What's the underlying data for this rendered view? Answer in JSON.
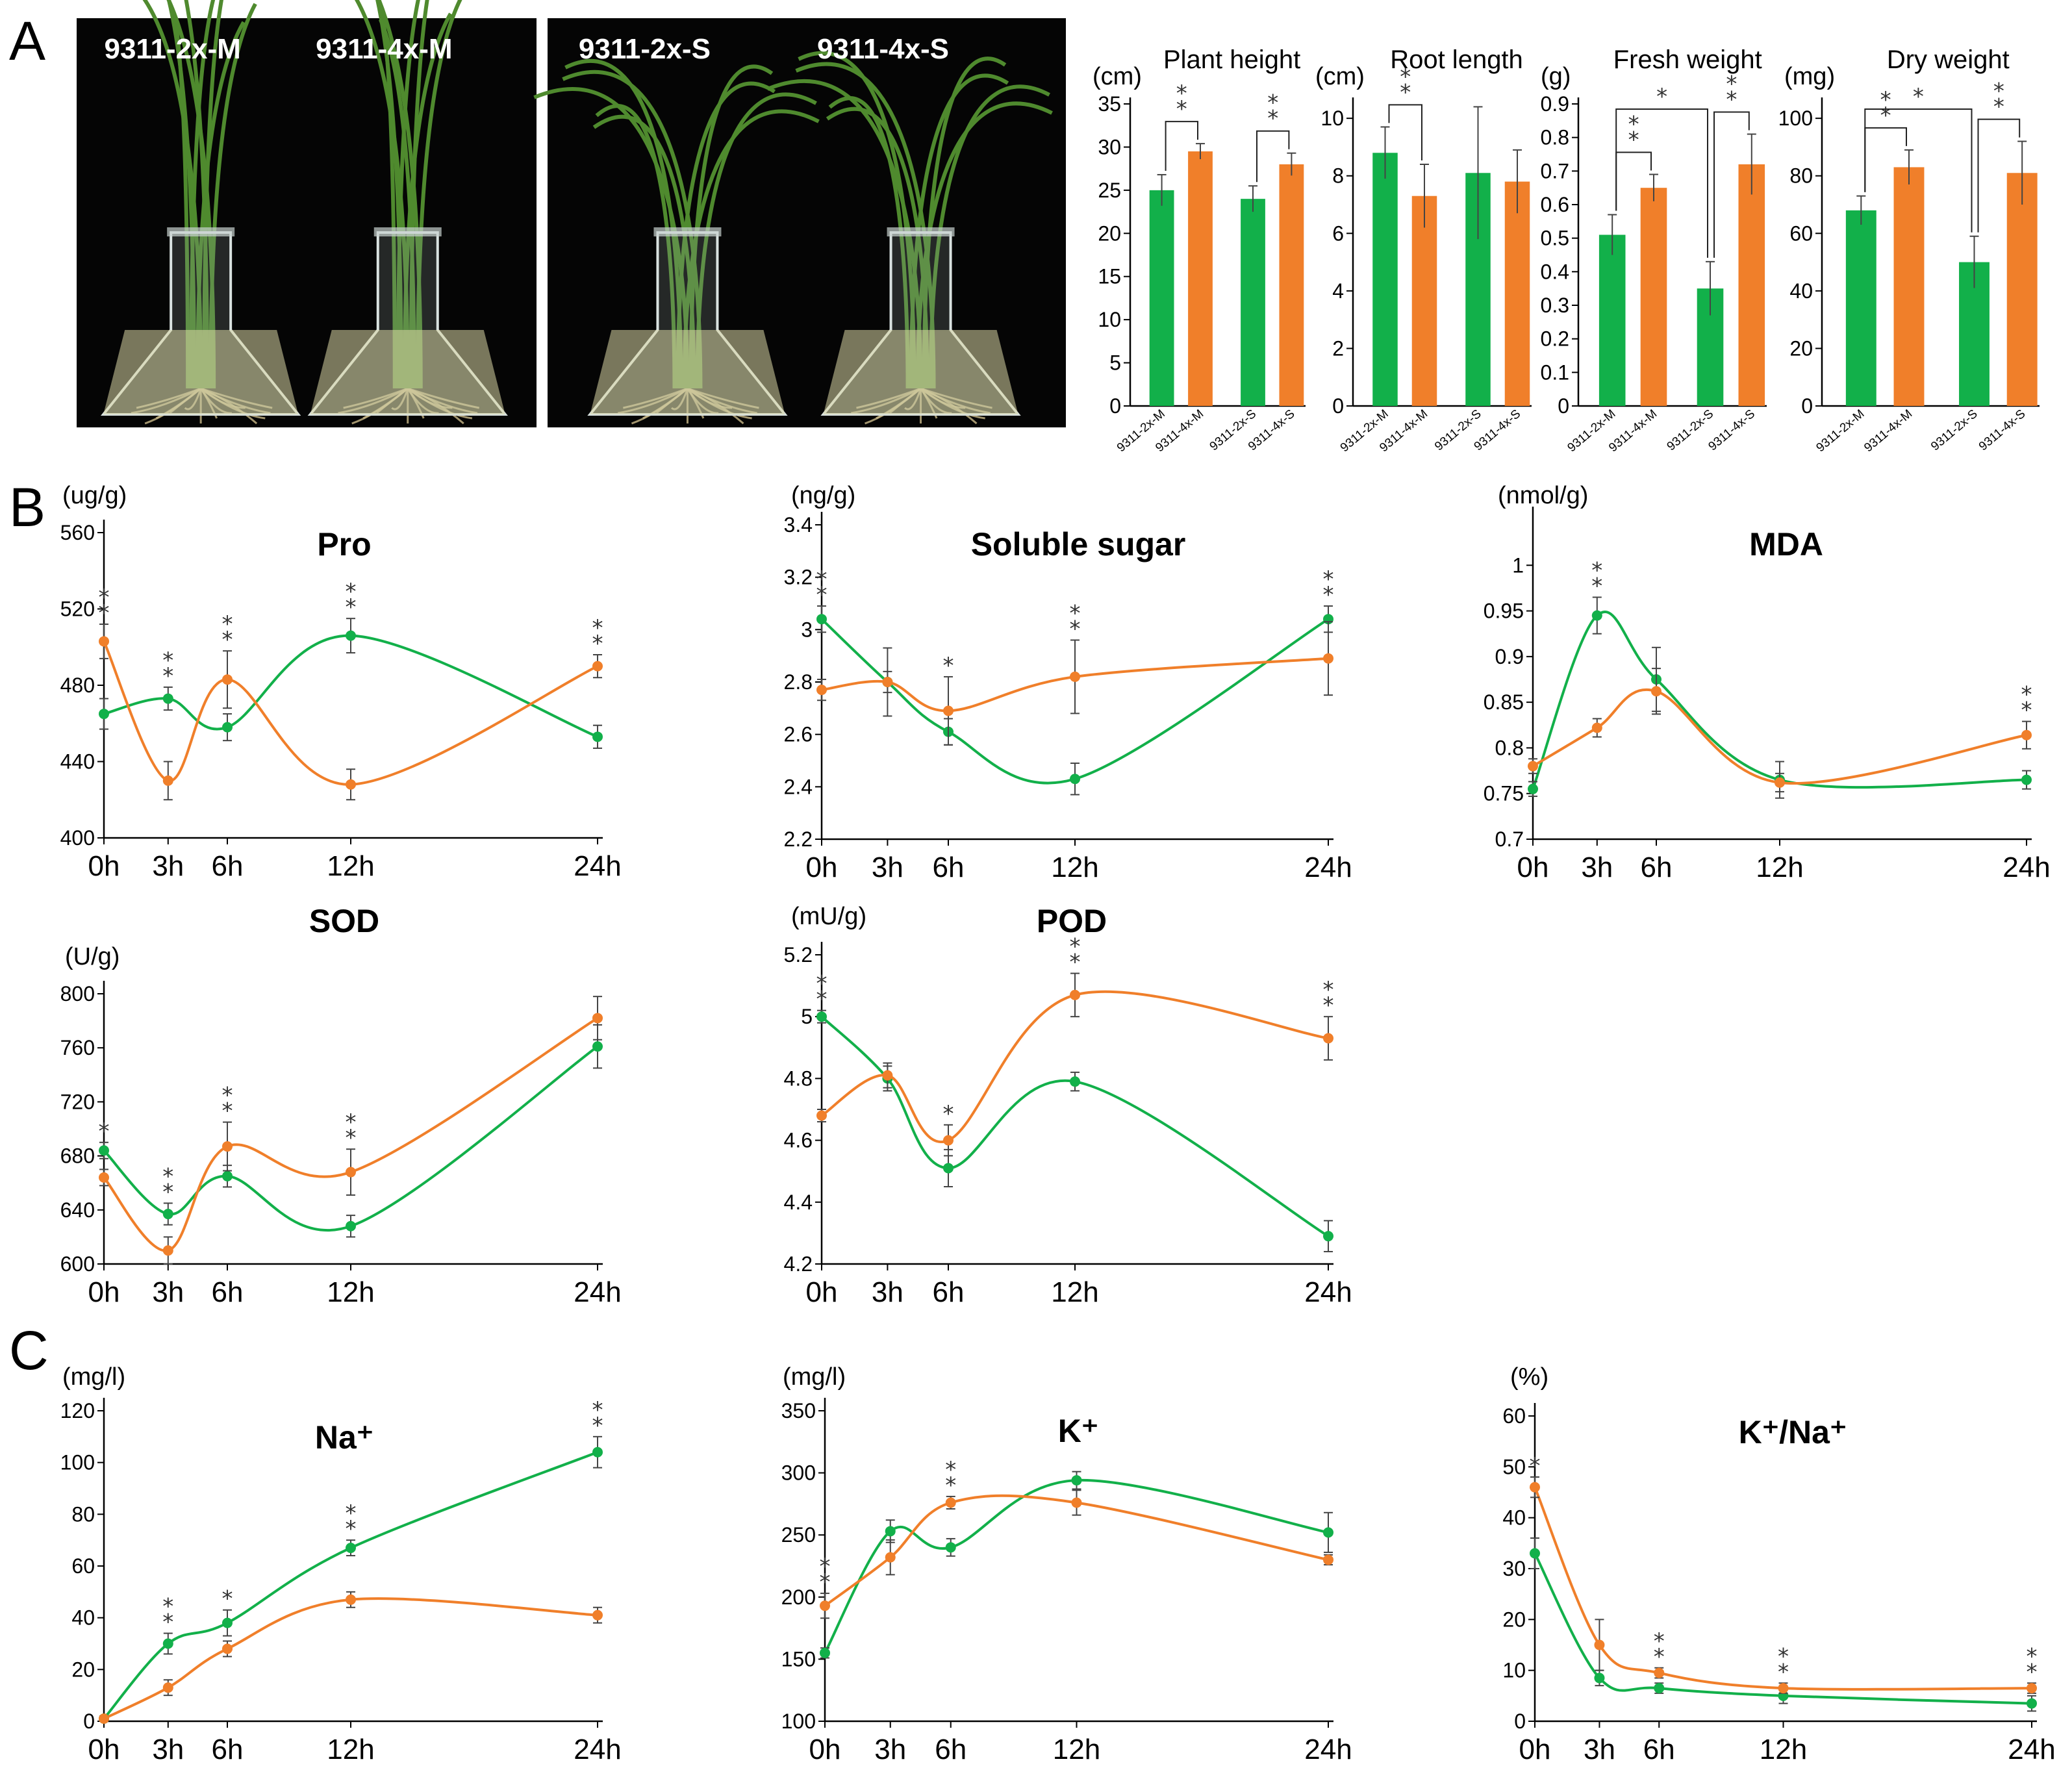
{
  "panels": {
    "a": "A",
    "b": "B",
    "c": "C"
  },
  "colors": {
    "green": "#12b04a",
    "orange": "#f07f2a",
    "photo_bg": "#050505",
    "photo_border": "#bfbfbf"
  },
  "photos": {
    "left": {
      "labels": [
        "9311-2x-M",
        "9311-4x-M"
      ]
    },
    "right": {
      "labels": [
        "9311-2x-S",
        "9311-4x-S"
      ]
    }
  },
  "chart_data": [
    {
      "type": "bar",
      "title": "Plant height",
      "ylabel": "(cm)",
      "ylim": [
        0,
        35
      ],
      "yticks": [
        0,
        5,
        10,
        15,
        20,
        25,
        30,
        35
      ],
      "categories": [
        "9311-2x-M",
        "9311-4x-M",
        "9311-2x-S",
        "9311-4x-S"
      ],
      "values": [
        25,
        29.5,
        24,
        28
      ],
      "errors": [
        1.8,
        0.9,
        1.5,
        1.3
      ],
      "sig": [
        {
          "from": 0,
          "to": 1,
          "label": "**"
        },
        {
          "from": 2,
          "to": 3,
          "label": "**"
        }
      ]
    },
    {
      "type": "bar",
      "title": "Root length",
      "ylabel": "(cm)",
      "ylim": [
        0,
        10.5
      ],
      "yticks": [
        0,
        2,
        4,
        6,
        8,
        10
      ],
      "categories": [
        "9311-2x-M",
        "9311-4x-M",
        "9311-2x-S",
        "9311-4x-S"
      ],
      "values": [
        8.8,
        7.3,
        8.1,
        7.8
      ],
      "errors": [
        0.9,
        1.1,
        2.3,
        1.1
      ],
      "sig": [
        {
          "from": 0,
          "to": 1,
          "label": "**"
        }
      ]
    },
    {
      "type": "bar",
      "title": "Fresh weight",
      "ylabel": "(g)",
      "ylim": [
        0,
        0.9
      ],
      "yticks": [
        0,
        0.1,
        0.2,
        0.3,
        0.4,
        0.5,
        0.6,
        0.7,
        0.8,
        0.9
      ],
      "categories": [
        "9311-2x-M",
        "9311-4x-M",
        "9311-2x-S",
        "9311-4x-S"
      ],
      "values": [
        0.51,
        0.65,
        0.35,
        0.72
      ],
      "errors": [
        0.06,
        0.04,
        0.08,
        0.09
      ],
      "sig": [
        {
          "from": 0,
          "to": 1,
          "label": "**"
        },
        {
          "from": 2,
          "to": 3,
          "label": "**"
        },
        {
          "from": 0,
          "to": 2,
          "label": "*",
          "top": true
        }
      ]
    },
    {
      "type": "bar",
      "title": "Dry weight",
      "ylabel": "(mg)",
      "ylim": [
        0,
        105
      ],
      "yticks": [
        0,
        20,
        40,
        60,
        80,
        100
      ],
      "categories": [
        "9311-2x-M",
        "9311-4x-M",
        "9311-2x-S",
        "9311-4x-S"
      ],
      "values": [
        68,
        83,
        50,
        81
      ],
      "errors": [
        5,
        6,
        9,
        11
      ],
      "sig": [
        {
          "from": 0,
          "to": 1,
          "label": "**"
        },
        {
          "from": 2,
          "to": 3,
          "label": "**"
        },
        {
          "from": 0,
          "to": 2,
          "label": "*",
          "top": true
        }
      ]
    },
    {
      "type": "line",
      "title": "Pro",
      "ylabel": "(ug/g)",
      "ylim": [
        400,
        560
      ],
      "yticks": [
        400,
        440,
        480,
        520,
        560
      ],
      "x": [
        0,
        3,
        6,
        12,
        24
      ],
      "xticks": [
        "0h",
        "3h",
        "6h",
        "12h",
        "24h"
      ],
      "series": [
        {
          "color": "green",
          "values": [
            465,
            473,
            458,
            506,
            453
          ],
          "errors": [
            8,
            6,
            7,
            9,
            6
          ]
        },
        {
          "color": "orange",
          "values": [
            503,
            430,
            483,
            428,
            490
          ],
          "errors": [
            9,
            10,
            15,
            8,
            6
          ]
        }
      ],
      "stars": [
        "**",
        "**",
        "**",
        "**",
        "**"
      ]
    },
    {
      "type": "line",
      "title": "Soluble sugar",
      "ylabel": "(ng/g)",
      "ylim": [
        2.2,
        3.4
      ],
      "yticks": [
        2.2,
        2.4,
        2.6,
        2.8,
        3.0,
        3.2,
        3.4
      ],
      "x": [
        0,
        3,
        6,
        12,
        24
      ],
      "xticks": [
        "0h",
        "3h",
        "6h",
        "12h",
        "24h"
      ],
      "series": [
        {
          "color": "green",
          "values": [
            3.04,
            2.8,
            2.61,
            2.43,
            3.04
          ],
          "errors": [
            0.05,
            0.13,
            0.05,
            0.06,
            0.05
          ]
        },
        {
          "color": "orange",
          "values": [
            2.77,
            2.8,
            2.69,
            2.82,
            2.89
          ],
          "errors": [
            0.04,
            0.04,
            0.13,
            0.14,
            0.14
          ]
        }
      ],
      "stars": [
        "**",
        "",
        "*",
        "**",
        "**"
      ]
    },
    {
      "type": "line",
      "title": "MDA",
      "ylabel": "(nmol/g)",
      "ylim": [
        0.7,
        1.05
      ],
      "yticks": [
        0.7,
        0.75,
        0.8,
        0.85,
        0.9,
        0.95,
        1.0
      ],
      "x": [
        0,
        3,
        6,
        12,
        24
      ],
      "xticks": [
        "0h",
        "3h",
        "6h",
        "12h",
        "24h"
      ],
      "series": [
        {
          "color": "green",
          "values": [
            0.755,
            0.945,
            0.875,
            0.765,
            0.765
          ],
          "errors": [
            0.008,
            0.02,
            0.035,
            0.02,
            0.01
          ]
        },
        {
          "color": "orange",
          "values": [
            0.78,
            0.822,
            0.862,
            0.762,
            0.814
          ],
          "errors": [
            0.008,
            0.01,
            0.025,
            0.01,
            0.015
          ]
        }
      ],
      "stars": [
        "",
        "**",
        "",
        "",
        "**"
      ]
    },
    {
      "type": "line",
      "title": "SOD",
      "ylabel": "(U/g)",
      "ylim": [
        600,
        800
      ],
      "yticks": [
        600,
        640,
        680,
        720,
        760,
        800
      ],
      "x": [
        0,
        3,
        6,
        12,
        24
      ],
      "xticks": [
        "0h",
        "3h",
        "6h",
        "12h",
        "24h"
      ],
      "series": [
        {
          "color": "green",
          "values": [
            684,
            637,
            665,
            628,
            761
          ],
          "errors": [
            6,
            8,
            8,
            8,
            16
          ]
        },
        {
          "color": "orange",
          "values": [
            664,
            610,
            687,
            668,
            782
          ],
          "errors": [
            6,
            10,
            18,
            17,
            16
          ]
        }
      ],
      "stars": [
        "*",
        "**",
        "**",
        "**",
        ""
      ]
    },
    {
      "type": "line",
      "title": "POD",
      "ylabel": "(mU/g)",
      "ylim": [
        4.2,
        5.2
      ],
      "yticks": [
        4.2,
        4.4,
        4.6,
        4.8,
        5.0,
        5.2
      ],
      "x": [
        0,
        3,
        6,
        12,
        24
      ],
      "xticks": [
        "0h",
        "3h",
        "6h",
        "12h",
        "24h"
      ],
      "series": [
        {
          "color": "green",
          "values": [
            5.0,
            4.8,
            4.51,
            4.79,
            4.29
          ],
          "errors": [
            0.02,
            0.04,
            0.06,
            0.03,
            0.05
          ]
        },
        {
          "color": "orange",
          "values": [
            4.68,
            4.81,
            4.6,
            5.07,
            4.93
          ],
          "errors": [
            0.02,
            0.04,
            0.05,
            0.07,
            0.07
          ]
        }
      ],
      "stars": [
        "**",
        "",
        "*",
        "**",
        "**"
      ]
    },
    {
      "type": "line",
      "title": "Na⁺",
      "ylabel": "(mg/l)",
      "ylim": [
        0,
        120
      ],
      "yticks": [
        0,
        20,
        40,
        60,
        80,
        100,
        120
      ],
      "x": [
        0,
        3,
        6,
        12,
        24
      ],
      "xticks": [
        "0h",
        "3h",
        "6h",
        "12h",
        "24h"
      ],
      "series": [
        {
          "color": "green",
          "values": [
            1,
            30,
            38,
            67,
            104
          ],
          "errors": [
            1,
            4,
            5,
            3,
            6
          ]
        },
        {
          "color": "orange",
          "values": [
            1,
            13,
            28,
            47,
            41
          ],
          "errors": [
            1,
            3,
            3,
            3,
            3
          ]
        }
      ],
      "stars": [
        "",
        "**",
        "*",
        "**",
        "**"
      ]
    },
    {
      "type": "line",
      "title": "K⁺",
      "ylabel": "(mg/l)",
      "ylim": [
        100,
        350
      ],
      "yticks": [
        100,
        150,
        200,
        250,
        300,
        350
      ],
      "x": [
        0,
        3,
        6,
        12,
        24
      ],
      "xticks": [
        "0h",
        "3h",
        "6h",
        "12h",
        "24h"
      ],
      "series": [
        {
          "color": "green",
          "values": [
            155,
            253,
            240,
            294,
            252
          ],
          "errors": [
            4,
            9,
            7,
            7,
            16
          ]
        },
        {
          "color": "orange",
          "values": [
            193,
            232,
            276,
            276,
            230
          ],
          "errors": [
            10,
            14,
            5,
            10,
            4
          ]
        }
      ],
      "stars": [
        "**",
        "",
        "**",
        "",
        ""
      ]
    },
    {
      "type": "line",
      "title": "K⁺/Na⁺",
      "ylabel": "(%)",
      "ylim": [
        0,
        60
      ],
      "yticks": [
        0,
        10,
        20,
        30,
        40,
        50,
        60
      ],
      "x": [
        0,
        3,
        6,
        12,
        24
      ],
      "xticks": [
        "0h",
        "3h",
        "6h",
        "12h",
        "24h"
      ],
      "series": [
        {
          "color": "green",
          "values": [
            33,
            8.5,
            6.5,
            5,
            3.5
          ],
          "errors": [
            3,
            1.5,
            1,
            1.5,
            1.5
          ]
        },
        {
          "color": "orange",
          "values": [
            46,
            15,
            9.5,
            6.5,
            6.5
          ],
          "errors": [
            2,
            5,
            1,
            1,
            1
          ]
        }
      ],
      "stars": [
        "*",
        "",
        "**",
        "**",
        "**"
      ]
    }
  ]
}
